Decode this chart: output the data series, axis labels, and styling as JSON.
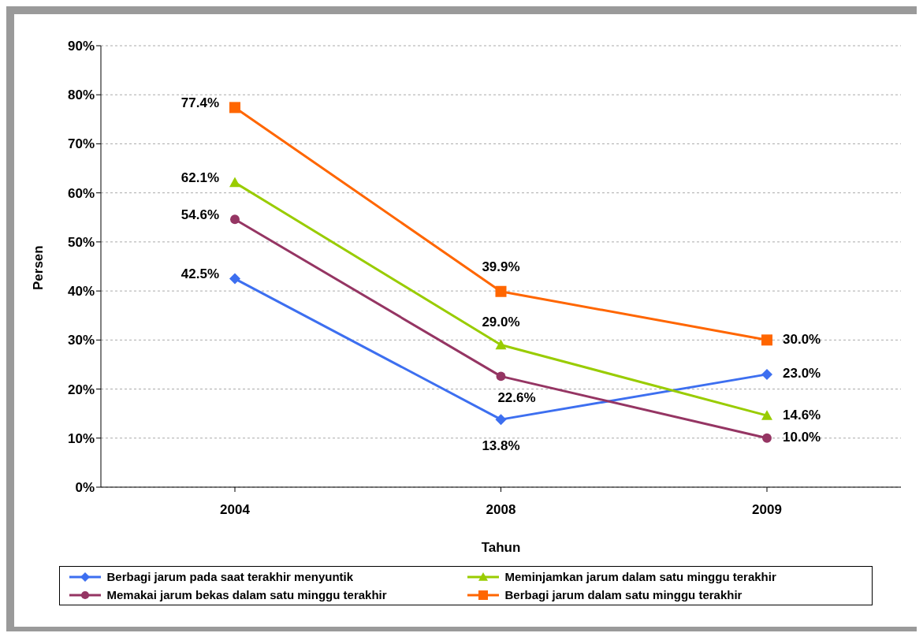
{
  "chart_data": {
    "type": "line",
    "xlabel": "Tahun",
    "ylabel": "Persen",
    "categories": [
      "2004",
      "2008",
      "2009"
    ],
    "series": [
      {
        "name": "Berbagi jarum pada saat terakhir menyuntik",
        "color": "#3d6ff0",
        "marker": "diamond",
        "values": [
          42.5,
          13.8,
          23.0
        ],
        "value_labels": [
          "42.5%",
          "13.8%",
          "23.0%"
        ]
      },
      {
        "name": "Meminjamkan jarum dalam satu minggu terakhir",
        "color": "#99cc00",
        "marker": "triangle",
        "values": [
          62.1,
          29.0,
          14.6
        ],
        "value_labels": [
          "62.1%",
          "29.0%",
          "14.6%"
        ]
      },
      {
        "name": "Memakai jarum bekas dalam satu minggu terakhir",
        "color": "#953563",
        "marker": "circle",
        "values": [
          54.6,
          22.6,
          10.0
        ],
        "value_labels": [
          "54.6%",
          "22.6%",
          "10.0%"
        ]
      },
      {
        "name": "Berbagi jarum dalam satu minggu terakhir",
        "color": "#ff6600",
        "marker": "square",
        "values": [
          77.4,
          39.9,
          30.0
        ],
        "value_labels": [
          "77.4%",
          "39.9%",
          "30.0%"
        ]
      }
    ],
    "ylim": [
      0,
      90
    ],
    "yticks": [
      {
        "value": 0,
        "label": "0%"
      },
      {
        "value": 10,
        "label": "10%"
      },
      {
        "value": 20,
        "label": "20%"
      },
      {
        "value": 30,
        "label": "30%"
      },
      {
        "value": 40,
        "label": "40%"
      },
      {
        "value": 50,
        "label": "50%"
      },
      {
        "value": 60,
        "label": "60%"
      },
      {
        "value": 70,
        "label": "70%"
      },
      {
        "value": 80,
        "label": "80%"
      },
      {
        "value": 90,
        "label": "90%"
      }
    ],
    "grid": "y",
    "legend": "bottom",
    "line_style": "solid"
  }
}
